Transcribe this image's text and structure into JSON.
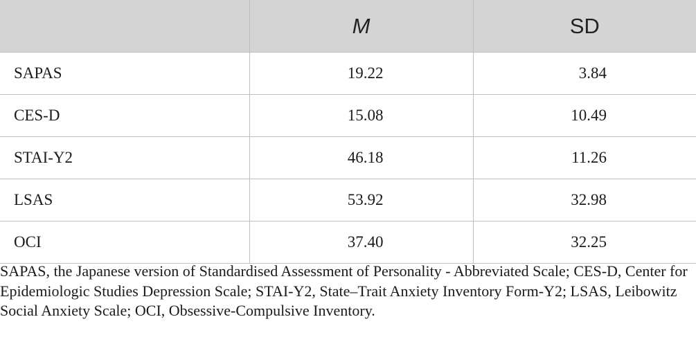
{
  "table": {
    "columns": [
      "",
      "M",
      "SD"
    ],
    "rows": [
      {
        "label": "SAPAS",
        "m": "19.22",
        "sd": "3.84"
      },
      {
        "label": "CES-D",
        "m": "15.08",
        "sd": "10.49"
      },
      {
        "label": "STAI-Y2",
        "m": "46.18",
        "sd": "11.26"
      },
      {
        "label": "LSAS",
        "m": "53.92",
        "sd": "32.98"
      },
      {
        "label": "OCI",
        "m": "37.40",
        "sd": "32.25"
      }
    ]
  },
  "footnote": "SAPAS, the Japanese version of Standardised Assessment of Personality - Abbreviated Scale; CES-D, Center for Epidemiologic Studies Depression Scale; STAI-Y2, State–Trait Anxiety Inventory Form-Y2; LSAS, Leibowitz Social Anxiety Scale; OCI, Obsessive-Compulsive Inventory.",
  "colors": {
    "header_bg": "#d4d4d4",
    "rule": "#bfbfbf",
    "text": "#1a1a1a"
  }
}
